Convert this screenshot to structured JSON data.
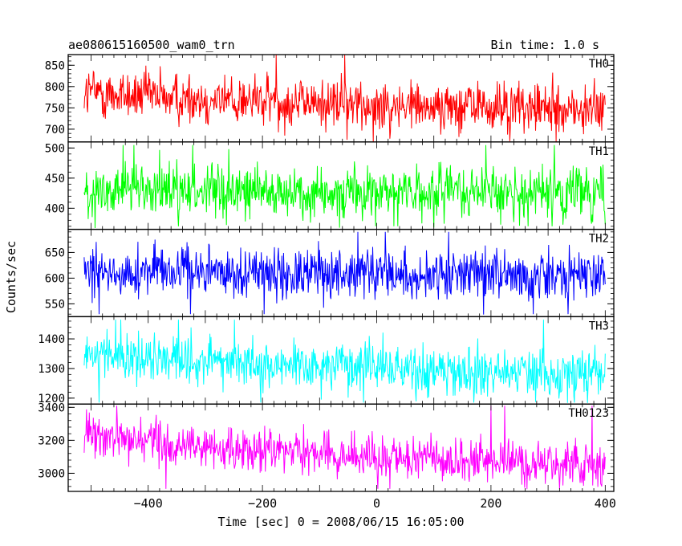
{
  "header": {
    "title": "ae080615160500_wam0_trn",
    "bin_time": "Bin time: 1.0 s"
  },
  "axes": {
    "xlabel": "Time [sec] 0 = 2008/06/15 16:05:00",
    "ylabel": "Counts/sec"
  },
  "chart_data": {
    "type": "line",
    "x_range": [
      -512,
      400
    ],
    "x_ticks": [
      -400,
      -200,
      0,
      200,
      400
    ],
    "bin_time_s": 1.0,
    "panels": [
      {
        "name": "TH0",
        "color": "#ff0000",
        "ylim": [
          670,
          875
        ],
        "y_ticks": [
          700,
          750,
          800,
          850
        ],
        "mean_start": 790,
        "mean_end": 745,
        "noise_amplitude": 30,
        "spike_max": 875,
        "spike_min": 675
      },
      {
        "name": "TH1",
        "color": "#00ff00",
        "ylim": [
          365,
          510
        ],
        "y_ticks": [
          400,
          450,
          500
        ],
        "mean_start": 430,
        "mean_end": 425,
        "noise_amplitude": 22,
        "spike_max": 505,
        "spike_min": 370
      },
      {
        "name": "TH2",
        "color": "#0000ff",
        "ylim": [
          525,
          695
        ],
        "y_ticks": [
          550,
          600,
          650
        ],
        "mean_start": 615,
        "mean_end": 605,
        "noise_amplitude": 25,
        "spike_max": 690,
        "spike_min": 530
      },
      {
        "name": "TH3",
        "color": "#00ffff",
        "ylim": [
          1180,
          1475
        ],
        "y_ticks": [
          1200,
          1300,
          1400
        ],
        "mean_start": 1360,
        "mean_end": 1280,
        "noise_amplitude": 40,
        "spike_max": 1465,
        "spike_min": 1185
      },
      {
        "name": "TH0123",
        "color": "#ff00ff",
        "ylim": [
          2890,
          3420
        ],
        "y_ticks": [
          3000,
          3200,
          3400
        ],
        "mean_start": 3240,
        "mean_end": 3040,
        "noise_amplitude": 65,
        "spike_max": 3410,
        "spike_min": 2905
      }
    ]
  }
}
